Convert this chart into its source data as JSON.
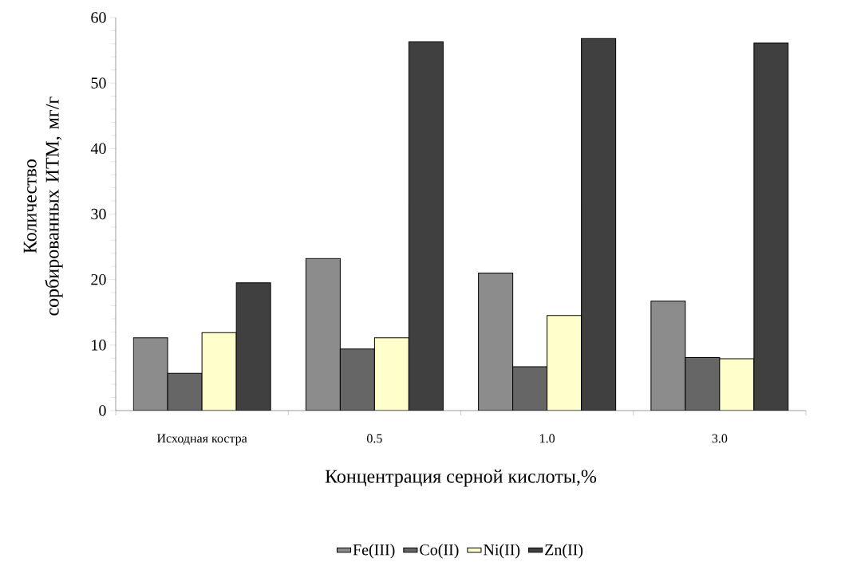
{
  "chart_data": {
    "type": "bar",
    "xlabel": "Концентрация серной кислоты,%",
    "ylabel": "Количество сорбированных ИТМ, мг/г",
    "categories": [
      "Исходная костра",
      "0.5",
      "1.0",
      "3.0"
    ],
    "series": [
      {
        "name": "Fe(III)",
        "color": "#8c8c8c",
        "values": [
          11.1,
          23.2,
          21.0,
          16.7
        ]
      },
      {
        "name": "Co(II)",
        "color": "#666666",
        "values": [
          5.7,
          9.4,
          6.7,
          8.1
        ]
      },
      {
        "name": "Ni(II)",
        "color": "#ffffcc",
        "values": [
          11.9,
          11.1,
          14.5,
          7.9
        ]
      },
      {
        "name": "Zn(II)",
        "color": "#404040",
        "values": [
          19.5,
          56.3,
          56.8,
          56.1
        ]
      }
    ],
    "ylim": [
      0,
      60
    ],
    "yticks": [
      0,
      10,
      20,
      30,
      40,
      50,
      60
    ],
    "legend": "bottom"
  }
}
